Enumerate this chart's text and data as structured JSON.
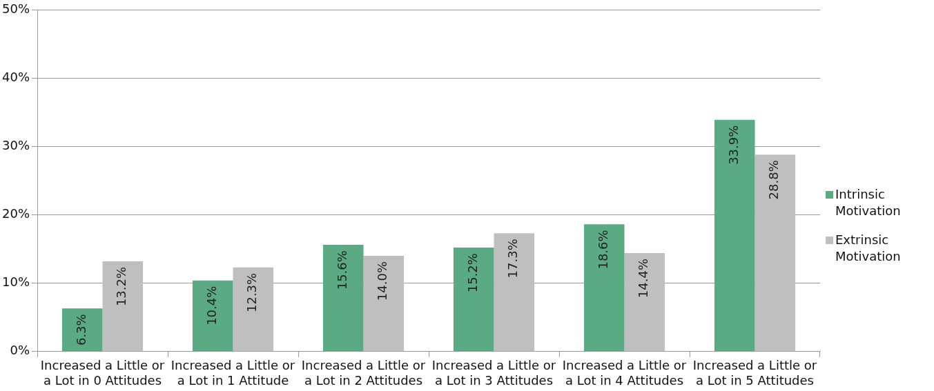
{
  "chart_data": {
    "type": "bar",
    "categories": [
      "Increased a Little or a Lot in 0 Attitudes",
      "Increased a Little or a Lot in 1 Attitude",
      "Increased a Little or a Lot in 2 Attitudes",
      "Increased a Little or a Lot in 3 Attitudes",
      "Increased a Little or a Lot in 4 Attitudes",
      "Increased a Little or a Lot in 5 Attitudes"
    ],
    "series": [
      {
        "name": "Intrinsic Motivation",
        "color": "#5aaa84",
        "values": [
          6.3,
          10.4,
          15.6,
          15.2,
          18.6,
          33.9
        ],
        "value_labels": [
          "6.3%",
          "10.4%",
          "15.6%",
          "15.2%",
          "18.6%",
          "33.9%"
        ]
      },
      {
        "name": "Extrinsic Motivation",
        "color": "#bfbfbf",
        "values": [
          13.2,
          12.3,
          14.0,
          17.3,
          14.4,
          28.8
        ],
        "value_labels": [
          "13.2%",
          "12.3%",
          "14.0%",
          "17.3%",
          "14.4%",
          "28.8%"
        ]
      }
    ],
    "ylim": [
      0,
      50
    ],
    "yticks": [
      {
        "value": 0,
        "label": "0%"
      },
      {
        "value": 10,
        "label": "10%"
      },
      {
        "value": 20,
        "label": "20%"
      },
      {
        "value": 30,
        "label": "30%"
      },
      {
        "value": 40,
        "label": "40%"
      },
      {
        "value": 50,
        "label": "50%"
      }
    ],
    "grid": "y",
    "legend": "right"
  }
}
